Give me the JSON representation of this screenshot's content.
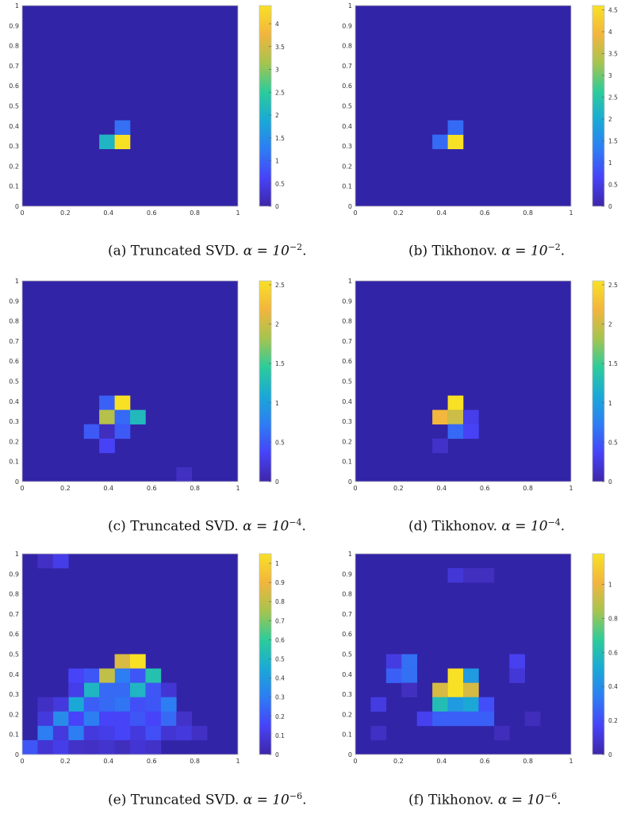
{
  "colormap": [
    "#3e26a8",
    "#4743f8",
    "#2d7df3",
    "#1aa9d6",
    "#2ccc9a",
    "#a6c44f",
    "#f2b53d",
    "#f8e125"
  ],
  "background_color": "#3224a6",
  "chart_data": [
    {
      "type": "heatmap",
      "grid_size": 14,
      "xlim": [
        0,
        1
      ],
      "ylim": [
        0,
        1
      ],
      "x_ticks": [
        "0",
        "0.2",
        "0.4",
        "0.6",
        "0.8",
        "1"
      ],
      "y_ticks": [
        "0",
        "0.1",
        "0.2",
        "0.3",
        "0.4",
        "0.5",
        "0.6",
        "0.7",
        "0.8",
        "0.9",
        "1"
      ],
      "colorbar": {
        "min": 0,
        "max": 4.4,
        "ticks": [
          "0",
          "0.5",
          "1",
          "1.5",
          "2",
          "2.5",
          "3",
          "3.5",
          "4"
        ],
        "values": [
          0,
          0.5,
          1,
          1.5,
          2,
          2.5,
          3,
          3.5,
          4
        ]
      },
      "cells": [
        {
          "x": 0.3571,
          "y": 0.2857,
          "value": 2.1
        },
        {
          "x": 0.4286,
          "y": 0.2857,
          "value": 4.4
        },
        {
          "x": 0.4286,
          "y": 0.3571,
          "value": 1.1
        }
      ],
      "caption": {
        "label": "(a) Truncated SVD.",
        "alpha": "α = 10",
        "exponent": "−2",
        "end": "."
      }
    },
    {
      "type": "heatmap",
      "grid_size": 14,
      "xlim": [
        0,
        1
      ],
      "ylim": [
        0,
        1
      ],
      "x_ticks": [
        "0",
        "0.2",
        "0.4",
        "0.6",
        "0.8",
        "1"
      ],
      "y_ticks": [
        "0",
        "0.1",
        "0.2",
        "0.3",
        "0.4",
        "0.5",
        "0.6",
        "0.7",
        "0.8",
        "0.9",
        "1"
      ],
      "colorbar": {
        "min": 0,
        "max": 4.6,
        "ticks": [
          "0",
          "0.5",
          "1",
          "1.5",
          "2",
          "2.5",
          "3",
          "3.5",
          "4",
          "4.5"
        ],
        "values": [
          0,
          0.5,
          1,
          1.5,
          2,
          2.5,
          3,
          3.5,
          4,
          4.5
        ]
      },
      "cells": [
        {
          "x": 0.3571,
          "y": 0.2857,
          "value": 1.1
        },
        {
          "x": 0.4286,
          "y": 0.2857,
          "value": 4.6
        },
        {
          "x": 0.4286,
          "y": 0.3571,
          "value": 1.1
        }
      ],
      "caption": {
        "label": "(b) Tikhonov.",
        "alpha": "α = 10",
        "exponent": "−2",
        "end": "."
      }
    },
    {
      "type": "heatmap",
      "grid_size": 14,
      "xlim": [
        0,
        1
      ],
      "ylim": [
        0,
        1
      ],
      "x_ticks": [
        "0",
        "0.2",
        "0.4",
        "0.6",
        "0.8",
        "1"
      ],
      "y_ticks": [
        "0",
        "0.1",
        "0.2",
        "0.3",
        "0.4",
        "0.5",
        "0.6",
        "0.7",
        "0.8",
        "0.9",
        "1"
      ],
      "colorbar": {
        "min": 0,
        "max": 2.55,
        "ticks": [
          "0",
          "0.5",
          "1",
          "1.5",
          "2",
          "2.5"
        ],
        "values": [
          0,
          0.5,
          1,
          1.5,
          2,
          2.5
        ]
      },
      "cells": [
        {
          "x": 0.3571,
          "y": 0.3571,
          "value": 0.55
        },
        {
          "x": 0.4286,
          "y": 0.3571,
          "value": 2.55
        },
        {
          "x": 0.3571,
          "y": 0.2857,
          "value": 1.9
        },
        {
          "x": 0.4286,
          "y": 0.2857,
          "value": 0.6
        },
        {
          "x": 0.5,
          "y": 0.2857,
          "value": 1.25
        },
        {
          "x": 0.2857,
          "y": 0.2143,
          "value": 0.5
        },
        {
          "x": 0.3571,
          "y": 0.2143,
          "value": 0.1
        },
        {
          "x": 0.4286,
          "y": 0.2143,
          "value": 0.5
        },
        {
          "x": 0.3571,
          "y": 0.1429,
          "value": 0.35
        },
        {
          "x": 0.7143,
          "y": 0.0,
          "value": 0.12
        }
      ],
      "caption": {
        "label": "(c) Truncated SVD.",
        "alpha": "α = 10",
        "exponent": "−4",
        "end": "."
      }
    },
    {
      "type": "heatmap",
      "grid_size": 14,
      "xlim": [
        0,
        1
      ],
      "ylim": [
        0,
        1
      ],
      "x_ticks": [
        "0",
        "0.2",
        "0.4",
        "0.6",
        "0.8",
        "1"
      ],
      "y_ticks": [
        "0",
        "0.1",
        "0.2",
        "0.3",
        "0.4",
        "0.5",
        "0.6",
        "0.7",
        "0.8",
        "0.9",
        "1"
      ],
      "colorbar": {
        "min": 0,
        "max": 2.55,
        "ticks": [
          "0",
          "0.5",
          "1",
          "1.5",
          "2",
          "2.5"
        ],
        "values": [
          0,
          0.5,
          1,
          1.5,
          2,
          2.5
        ]
      },
      "cells": [
        {
          "x": 0.4286,
          "y": 0.3571,
          "value": 2.55
        },
        {
          "x": 0.3571,
          "y": 0.2857,
          "value": 2.2
        },
        {
          "x": 0.4286,
          "y": 0.2857,
          "value": 2.0
        },
        {
          "x": 0.5,
          "y": 0.2857,
          "value": 0.3
        },
        {
          "x": 0.4286,
          "y": 0.2143,
          "value": 0.6
        },
        {
          "x": 0.5,
          "y": 0.2143,
          "value": 0.35
        },
        {
          "x": 0.3571,
          "y": 0.1429,
          "value": 0.15
        }
      ],
      "caption": {
        "label": "(d) Tikhonov.",
        "alpha": "α = 10",
        "exponent": "−4",
        "end": "."
      }
    },
    {
      "type": "heatmap",
      "grid_size": 14,
      "xlim": [
        0,
        1
      ],
      "ylim": [
        0,
        1
      ],
      "x_ticks": [
        "0",
        "0.2",
        "0.4",
        "0.6",
        "0.8",
        "1"
      ],
      "y_ticks": [
        "0",
        "0.1",
        "0.2",
        "0.3",
        "0.4",
        "0.5",
        "0.6",
        "0.7",
        "0.8",
        "0.9",
        "1"
      ],
      "colorbar": {
        "min": 0,
        "max": 1.05,
        "ticks": [
          "0",
          "0.1",
          "0.2",
          "0.3",
          "0.4",
          "0.5",
          "0.6",
          "0.7",
          "0.8",
          "0.9",
          "1"
        ],
        "values": [
          0,
          0.1,
          0.2,
          0.3,
          0.4,
          0.5,
          0.6,
          0.7,
          0.8,
          0.9,
          1
        ]
      },
      "cells": [
        {
          "x": 0.0714,
          "y": 0.9286,
          "value": 0.05
        },
        {
          "x": 0.1429,
          "y": 0.9286,
          "value": 0.12
        },
        {
          "x": 0.4286,
          "y": 0.4286,
          "value": 0.85
        },
        {
          "x": 0.5,
          "y": 0.4286,
          "value": 1.05
        },
        {
          "x": 0.2857,
          "y": 0.3571,
          "value": 0.2
        },
        {
          "x": 0.4286,
          "y": 0.3571,
          "value": 0.3
        },
        {
          "x": 0.5,
          "y": 0.3571,
          "value": 0.2
        },
        {
          "x": 0.2143,
          "y": 0.3571,
          "value": 0.15
        },
        {
          "x": 0.3571,
          "y": 0.3571,
          "value": 0.8
        },
        {
          "x": 0.5714,
          "y": 0.3571,
          "value": 0.55
        },
        {
          "x": 0.2857,
          "y": 0.2857,
          "value": 0.5
        },
        {
          "x": 0.3571,
          "y": 0.2857,
          "value": 0.25
        },
        {
          "x": 0.4286,
          "y": 0.2857,
          "value": 0.25
        },
        {
          "x": 0.5,
          "y": 0.2857,
          "value": 0.5
        },
        {
          "x": 0.5714,
          "y": 0.2857,
          "value": 0.2
        },
        {
          "x": 0.2143,
          "y": 0.2857,
          "value": 0.12
        },
        {
          "x": 0.6429,
          "y": 0.2857,
          "value": 0.08
        },
        {
          "x": 0.2143,
          "y": 0.2143,
          "value": 0.45
        },
        {
          "x": 0.2857,
          "y": 0.2143,
          "value": 0.22
        },
        {
          "x": 0.3571,
          "y": 0.2143,
          "value": 0.25
        },
        {
          "x": 0.4286,
          "y": 0.2143,
          "value": 0.28
        },
        {
          "x": 0.5,
          "y": 0.2143,
          "value": 0.18
        },
        {
          "x": 0.5714,
          "y": 0.2143,
          "value": 0.2
        },
        {
          "x": 0.6429,
          "y": 0.2143,
          "value": 0.3
        },
        {
          "x": 0.1429,
          "y": 0.2143,
          "value": 0.1
        },
        {
          "x": 0.0714,
          "y": 0.2143,
          "value": 0.05
        },
        {
          "x": 0.1429,
          "y": 0.1429,
          "value": 0.35
        },
        {
          "x": 0.2143,
          "y": 0.1429,
          "value": 0.15
        },
        {
          "x": 0.2857,
          "y": 0.1429,
          "value": 0.3
        },
        {
          "x": 0.3571,
          "y": 0.1429,
          "value": 0.15
        },
        {
          "x": 0.4286,
          "y": 0.1429,
          "value": 0.15
        },
        {
          "x": 0.5,
          "y": 0.1429,
          "value": 0.2
        },
        {
          "x": 0.5714,
          "y": 0.1429,
          "value": 0.15
        },
        {
          "x": 0.6429,
          "y": 0.1429,
          "value": 0.25
        },
        {
          "x": 0.0714,
          "y": 0.1429,
          "value": 0.1
        },
        {
          "x": 0.7143,
          "y": 0.1429,
          "value": 0.06
        },
        {
          "x": 0.0714,
          "y": 0.0714,
          "value": 0.3
        },
        {
          "x": 0.1429,
          "y": 0.0714,
          "value": 0.1
        },
        {
          "x": 0.2143,
          "y": 0.0714,
          "value": 0.3
        },
        {
          "x": 0.2857,
          "y": 0.0714,
          "value": 0.1
        },
        {
          "x": 0.3571,
          "y": 0.0714,
          "value": 0.12
        },
        {
          "x": 0.4286,
          "y": 0.0714,
          "value": 0.15
        },
        {
          "x": 0.5,
          "y": 0.0714,
          "value": 0.1
        },
        {
          "x": 0.5714,
          "y": 0.0714,
          "value": 0.18
        },
        {
          "x": 0.6429,
          "y": 0.0714,
          "value": 0.08
        },
        {
          "x": 0.7143,
          "y": 0.0714,
          "value": 0.1
        },
        {
          "x": 0.7857,
          "y": 0.0714,
          "value": 0.05
        },
        {
          "x": 0.0,
          "y": 0.0,
          "value": 0.2
        },
        {
          "x": 0.0714,
          "y": 0.0,
          "value": 0.08
        },
        {
          "x": 0.1429,
          "y": 0.0,
          "value": 0.12
        },
        {
          "x": 0.2143,
          "y": 0.0,
          "value": 0.06
        },
        {
          "x": 0.2857,
          "y": 0.0,
          "value": 0.05
        },
        {
          "x": 0.3571,
          "y": 0.0,
          "value": 0.07
        },
        {
          "x": 0.4286,
          "y": 0.0,
          "value": 0.04
        },
        {
          "x": 0.5,
          "y": 0.0,
          "value": 0.08
        },
        {
          "x": 0.5714,
          "y": 0.0,
          "value": 0.06
        }
      ],
      "caption": {
        "label": "(e) Truncated SVD.",
        "alpha": "α = 10",
        "exponent": "−6",
        "end": "."
      }
    },
    {
      "type": "heatmap",
      "grid_size": 14,
      "xlim": [
        0,
        1
      ],
      "ylim": [
        0,
        1
      ],
      "x_ticks": [
        "0",
        "0.2",
        "0.4",
        "0.6",
        "0.8",
        "1"
      ],
      "y_ticks": [
        "0",
        "0.1",
        "0.2",
        "0.3",
        "0.4",
        "0.5",
        "0.6",
        "0.7",
        "0.8",
        "0.9",
        "1"
      ],
      "colorbar": {
        "min": 0,
        "max": 1.18,
        "ticks": [
          "0",
          "0.2",
          "0.4",
          "0.6",
          "0.8",
          "1"
        ],
        "values": [
          0,
          0.2,
          0.4,
          0.6,
          0.8,
          1
        ]
      },
      "cells": [
        {
          "x": 0.4286,
          "y": 0.8571,
          "value": 0.1
        },
        {
          "x": 0.5,
          "y": 0.8571,
          "value": 0.05
        },
        {
          "x": 0.5714,
          "y": 0.8571,
          "value": 0.05
        },
        {
          "x": 0.1429,
          "y": 0.4286,
          "value": 0.12
        },
        {
          "x": 0.2143,
          "y": 0.4286,
          "value": 0.3
        },
        {
          "x": 0.1429,
          "y": 0.3571,
          "value": 0.25
        },
        {
          "x": 0.2143,
          "y": 0.3571,
          "value": 0.3
        },
        {
          "x": 0.2143,
          "y": 0.2857,
          "value": 0.05
        },
        {
          "x": 0.7143,
          "y": 0.4286,
          "value": 0.15
        },
        {
          "x": 0.7143,
          "y": 0.3571,
          "value": 0.1
        },
        {
          "x": 0.4286,
          "y": 0.3571,
          "value": 1.18
        },
        {
          "x": 0.5,
          "y": 0.3571,
          "value": 0.45
        },
        {
          "x": 0.3571,
          "y": 0.2857,
          "value": 0.95
        },
        {
          "x": 0.4286,
          "y": 0.2857,
          "value": 1.18
        },
        {
          "x": 0.5,
          "y": 0.2857,
          "value": 0.95
        },
        {
          "x": 0.3571,
          "y": 0.2143,
          "value": 0.6
        },
        {
          "x": 0.4286,
          "y": 0.2143,
          "value": 0.45
        },
        {
          "x": 0.5,
          "y": 0.2143,
          "value": 0.5
        },
        {
          "x": 0.5714,
          "y": 0.2143,
          "value": 0.2
        },
        {
          "x": 0.2857,
          "y": 0.1429,
          "value": 0.15
        },
        {
          "x": 0.3571,
          "y": 0.1429,
          "value": 0.25
        },
        {
          "x": 0.4286,
          "y": 0.1429,
          "value": 0.25
        },
        {
          "x": 0.5,
          "y": 0.1429,
          "value": 0.25
        },
        {
          "x": 0.5714,
          "y": 0.1429,
          "value": 0.25
        },
        {
          "x": 0.0714,
          "y": 0.2143,
          "value": 0.12
        },
        {
          "x": 0.0714,
          "y": 0.0714,
          "value": 0.06
        },
        {
          "x": 0.6429,
          "y": 0.0714,
          "value": 0.04
        },
        {
          "x": 0.7857,
          "y": 0.1429,
          "value": 0.04
        }
      ],
      "caption": {
        "label": "(f) Tikhonov.",
        "alpha": "α = 10",
        "exponent": "−6",
        "end": "."
      }
    }
  ]
}
